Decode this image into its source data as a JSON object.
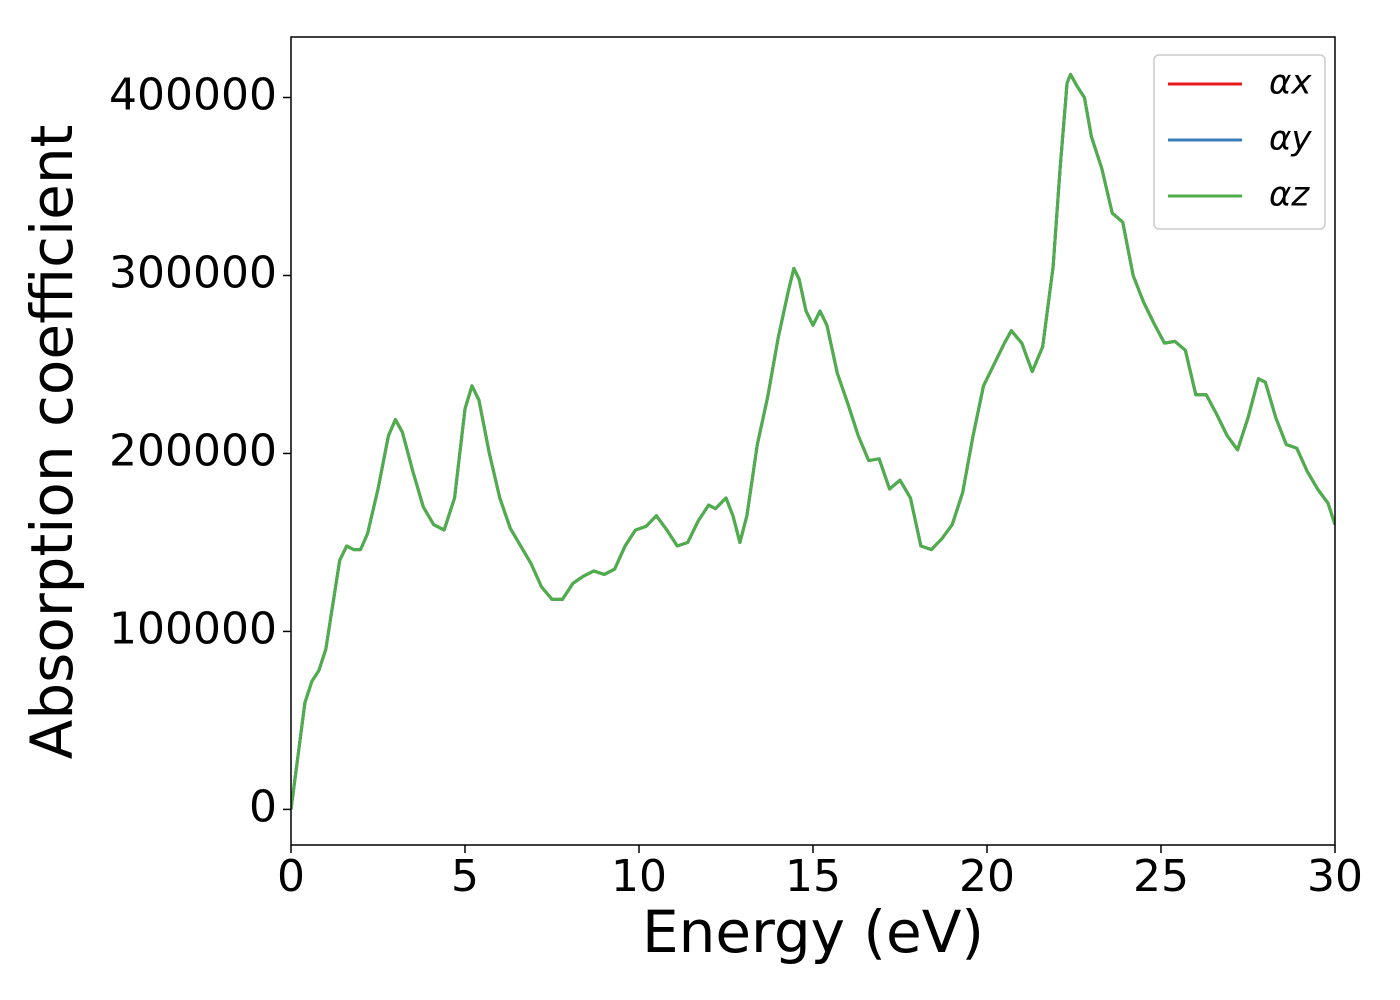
{
  "chart_data": {
    "type": "line",
    "xlabel": "Energy (eV)",
    "ylabel": "Absorption coefficient",
    "x": [
      0,
      0.2,
      0.4,
      0.6,
      0.8,
      1.0,
      1.2,
      1.4,
      1.6,
      1.8,
      2.0,
      2.2,
      2.5,
      2.8,
      3.0,
      3.2,
      3.5,
      3.8,
      4.1,
      4.4,
      4.7,
      5.0,
      5.2,
      5.4,
      5.7,
      6.0,
      6.3,
      6.6,
      6.9,
      7.2,
      7.5,
      7.8,
      8.1,
      8.4,
      8.7,
      9.0,
      9.3,
      9.6,
      9.9,
      10.2,
      10.5,
      10.8,
      11.1,
      11.4,
      11.7,
      12.0,
      12.2,
      12.5,
      12.7,
      12.9,
      13.1,
      13.4,
      13.7,
      14.0,
      14.3,
      14.45,
      14.6,
      14.8,
      15.0,
      15.2,
      15.4,
      15.7,
      16.0,
      16.3,
      16.6,
      16.9,
      17.2,
      17.5,
      17.8,
      18.1,
      18.4,
      18.7,
      19.0,
      19.3,
      19.6,
      19.9,
      20.2,
      20.5,
      20.7,
      21.0,
      21.3,
      21.6,
      21.9,
      22.1,
      22.3,
      22.4,
      22.6,
      22.8,
      23.0,
      23.3,
      23.6,
      23.9,
      24.2,
      24.5,
      24.8,
      25.1,
      25.4,
      25.7,
      26.0,
      26.3,
      26.6,
      26.9,
      27.2,
      27.5,
      27.8,
      28.0,
      28.3,
      28.6,
      28.9,
      29.2,
      29.5,
      29.8,
      30.0
    ],
    "series": [
      {
        "name": "αx",
        "color": "#e41a1c",
        "values": [
          0,
          30000,
          60000,
          72000,
          78000,
          90000,
          115000,
          140000,
          148000,
          146000,
          146000,
          155000,
          180000,
          210000,
          219000,
          212000,
          190000,
          170000,
          160000,
          157000,
          175000,
          225000,
          238000,
          230000,
          200000,
          175000,
          158000,
          148000,
          138000,
          125000,
          118000,
          118000,
          127000,
          131000,
          134000,
          132000,
          135000,
          148000,
          157000,
          159000,
          165000,
          157000,
          148000,
          150000,
          162000,
          171000,
          169000,
          175000,
          165000,
          150000,
          165000,
          205000,
          232000,
          265000,
          292000,
          304000,
          298000,
          280000,
          272000,
          280000,
          272000,
          245000,
          228000,
          210000,
          196000,
          197000,
          180000,
          185000,
          175000,
          148000,
          146000,
          152000,
          160000,
          178000,
          210000,
          238000,
          250000,
          262000,
          269000,
          262000,
          246000,
          260000,
          305000,
          360000,
          408000,
          413000,
          406000,
          400000,
          378000,
          360000,
          335000,
          330000,
          300000,
          285000,
          273000,
          262000,
          263000,
          258000,
          233000,
          233000,
          222000,
          210000,
          202000,
          220000,
          242000,
          240000,
          220000,
          205000,
          203000,
          190000,
          180000,
          172000,
          160000
        ]
      },
      {
        "name": "αy",
        "color": "#377eb8",
        "values": [
          0,
          30000,
          60000,
          72000,
          78000,
          90000,
          115000,
          140000,
          148000,
          146000,
          146000,
          155000,
          180000,
          210000,
          219000,
          212000,
          190000,
          170000,
          160000,
          157000,
          175000,
          225000,
          238000,
          230000,
          200000,
          175000,
          158000,
          148000,
          138000,
          125000,
          118000,
          118000,
          127000,
          131000,
          134000,
          132000,
          135000,
          148000,
          157000,
          159000,
          165000,
          157000,
          148000,
          150000,
          162000,
          171000,
          169000,
          175000,
          165000,
          150000,
          165000,
          205000,
          232000,
          265000,
          292000,
          304000,
          298000,
          280000,
          272000,
          280000,
          272000,
          245000,
          228000,
          210000,
          196000,
          197000,
          180000,
          185000,
          175000,
          148000,
          146000,
          152000,
          160000,
          178000,
          210000,
          238000,
          250000,
          262000,
          269000,
          262000,
          246000,
          260000,
          305000,
          360000,
          408000,
          413000,
          406000,
          400000,
          378000,
          360000,
          335000,
          330000,
          300000,
          285000,
          273000,
          262000,
          263000,
          258000,
          233000,
          233000,
          222000,
          210000,
          202000,
          220000,
          242000,
          240000,
          220000,
          205000,
          203000,
          190000,
          180000,
          172000,
          160000
        ]
      },
      {
        "name": "αz",
        "color": "#4daf4a",
        "values": [
          0,
          30000,
          60000,
          72000,
          78000,
          90000,
          115000,
          140000,
          148000,
          146000,
          146000,
          155000,
          180000,
          210000,
          219000,
          212000,
          190000,
          170000,
          160000,
          157000,
          175000,
          225000,
          238000,
          230000,
          200000,
          175000,
          158000,
          148000,
          138000,
          125000,
          118000,
          118000,
          127000,
          131000,
          134000,
          132000,
          135000,
          148000,
          157000,
          159000,
          165000,
          157000,
          148000,
          150000,
          162000,
          171000,
          169000,
          175000,
          165000,
          150000,
          165000,
          205000,
          232000,
          265000,
          292000,
          304000,
          298000,
          280000,
          272000,
          280000,
          272000,
          245000,
          228000,
          210000,
          196000,
          197000,
          180000,
          185000,
          175000,
          148000,
          146000,
          152000,
          160000,
          178000,
          210000,
          238000,
          250000,
          262000,
          269000,
          262000,
          246000,
          260000,
          305000,
          360000,
          408000,
          413000,
          406000,
          400000,
          378000,
          360000,
          335000,
          330000,
          300000,
          285000,
          273000,
          262000,
          263000,
          258000,
          233000,
          233000,
          222000,
          210000,
          202000,
          220000,
          242000,
          240000,
          220000,
          205000,
          203000,
          190000,
          180000,
          172000,
          160000
        ]
      }
    ],
    "xlim": [
      0,
      30
    ],
    "xticks": [
      0,
      5,
      10,
      15,
      20,
      25,
      30
    ],
    "ylim": [
      -20000,
      434000
    ],
    "yticks": [
      0,
      100000,
      200000,
      300000,
      400000
    ],
    "grid": false,
    "legend": "upper right"
  }
}
